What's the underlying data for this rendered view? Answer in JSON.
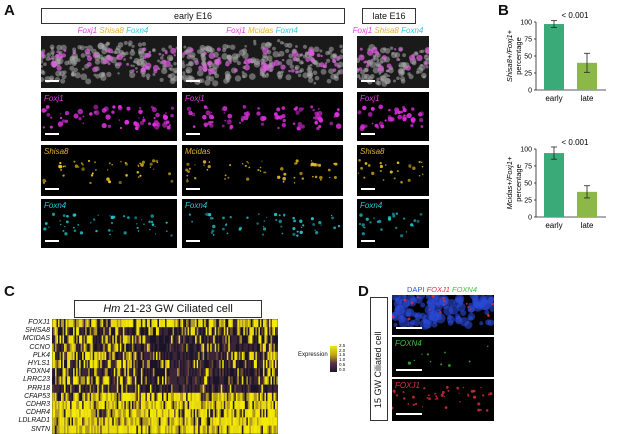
{
  "panels": {
    "A": "A",
    "B": "B",
    "C": "C",
    "D": "D"
  },
  "panelA": {
    "early_label": "early E16",
    "late_label": "late E16",
    "col1_header": [
      "Foxj1",
      "Shisa8",
      "Foxn4"
    ],
    "col2_header": [
      "Foxj1",
      "Mcidas",
      "Foxn4"
    ],
    "col3_header": [
      "Foxj1",
      "Shisa8",
      "Foxn4"
    ],
    "col1_rows": [
      "Foxj1",
      "Shisa8",
      "Foxn4"
    ],
    "col2_rows": [
      "Foxj1",
      "Mcidas",
      "Foxn4"
    ],
    "col3_rows": [
      "Foxj1",
      "Shisa8",
      "Foxn4"
    ],
    "colors": {
      "foxj1": "#e040e0",
      "shisa8": "#e8b030",
      "mcidas": "#e8b030",
      "foxn4": "#30c8d8",
      "yellow_signal": "#e8d020",
      "cyan_signal": "#20c0c8",
      "magenta_signal": "#e030e0"
    }
  },
  "chart_data": [
    {
      "type": "bar",
      "categories": [
        "early",
        "late"
      ],
      "values": [
        97,
        40
      ],
      "errors": [
        5,
        14
      ],
      "ylabel": "Shisa8+/Foxj1+ percentage",
      "ylim": [
        0,
        100
      ],
      "yticks": [
        "0",
        "25",
        "50",
        "75",
        "100"
      ],
      "pvalue": "< 0.001",
      "colors": [
        "#3aaa78",
        "#8cb84a"
      ]
    },
    {
      "type": "bar",
      "categories": [
        "early",
        "late"
      ],
      "values": [
        94,
        37
      ],
      "errors": [
        9,
        9
      ],
      "ylabel": "Mcidas+/Foxj1+ percentage",
      "ylim": [
        0,
        100
      ],
      "yticks": [
        "0",
        "25",
        "50",
        "75",
        "100"
      ],
      "pvalue": "< 0.001",
      "colors": [
        "#3aaa78",
        "#8cb84a"
      ]
    }
  ],
  "panelC": {
    "title_italic": "Hm",
    "title_rest": " 21-23 GW Ciliated cell",
    "genes": [
      "FOXJ1",
      "SHISA8",
      "MCIDAS",
      "CCNO",
      "PLK4",
      "HYLS1",
      "FOXN4",
      "LRRC23",
      "PRR18",
      "CFAP53",
      "CDHR3",
      "CDHR4",
      "LDLRAD1",
      "SNTN"
    ],
    "legend_title": "Expression",
    "legend_ticks": [
      "2.5",
      "2.0",
      "1.5",
      "1.0",
      "0.5",
      "0.0"
    ]
  },
  "panelD": {
    "side_label": "15 GW Ciliated cell",
    "header": [
      "DAPI",
      "FOXJ1",
      "FOXN4"
    ],
    "rows": [
      "FOXN4",
      "FOXJ1"
    ],
    "colors": {
      "dapi": "#3050e0",
      "foxj1": "#e03040",
      "foxn4": "#40c040"
    }
  }
}
